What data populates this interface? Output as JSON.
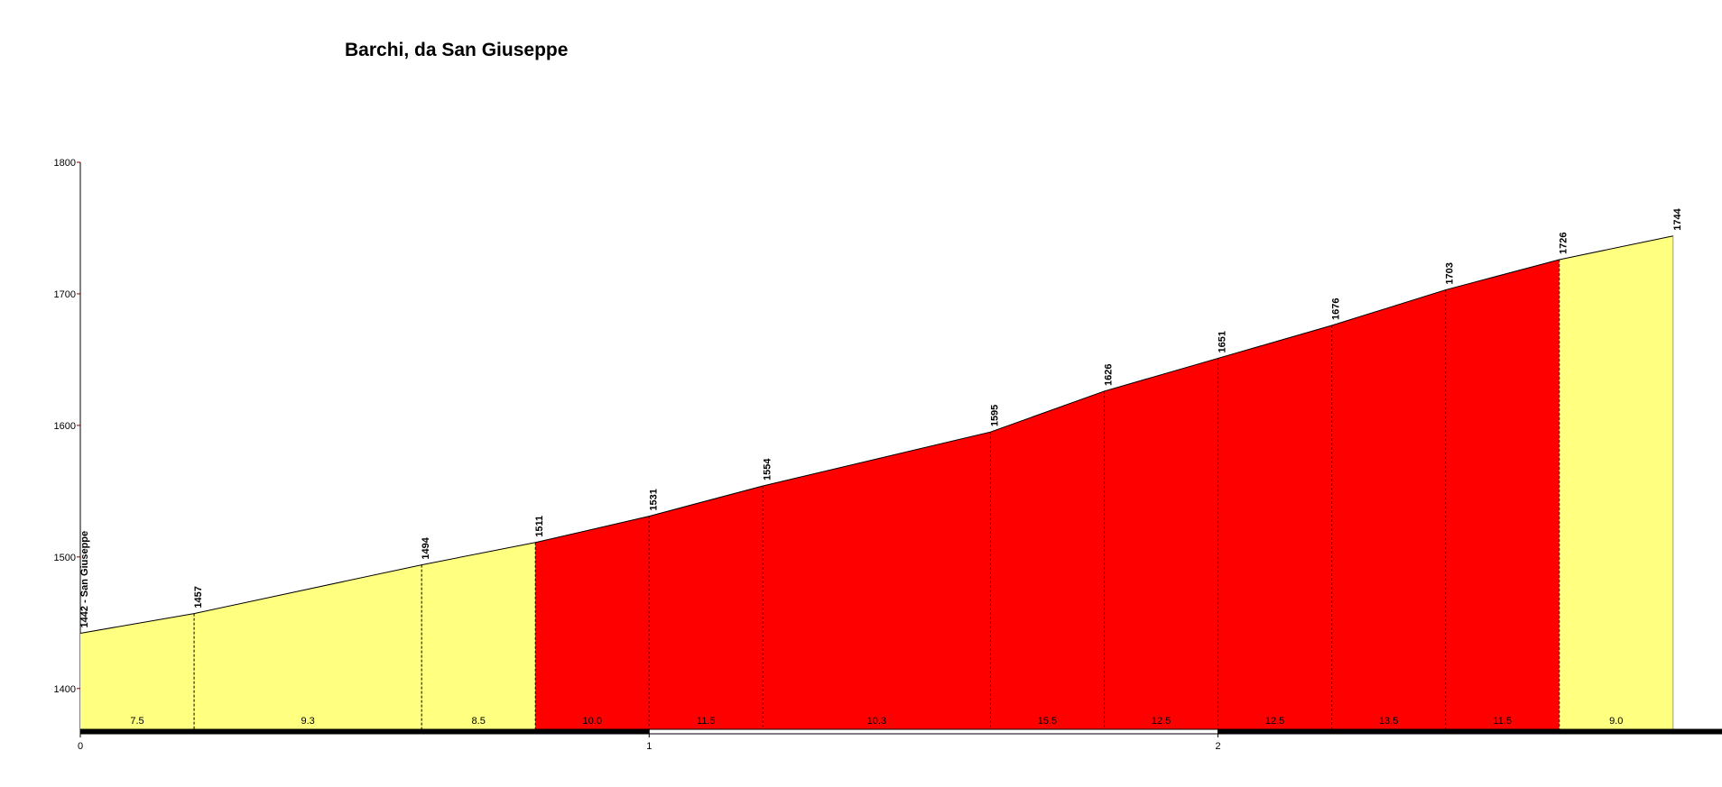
{
  "chart_data": {
    "type": "profile",
    "title": "Barchi, da San Giuseppe",
    "x": [
      0,
      0.2,
      0.6,
      0.8,
      1.0,
      1.2,
      1.6,
      1.8,
      2.0,
      2.2,
      2.4,
      2.6,
      2.8
    ],
    "values": [
      1442,
      1457,
      1494,
      1511,
      1531,
      1554,
      1595,
      1626,
      1651,
      1676,
      1703,
      1726,
      1744
    ],
    "value_labels": [
      "1442 - San Giuseppe",
      "1457",
      "1494",
      "1511",
      "1531",
      "1554",
      "1595",
      "1626",
      "1651",
      "1676",
      "1703",
      "1726",
      "1744"
    ],
    "gradients": [
      7.5,
      9.3,
      8.5,
      10.0,
      11.5,
      10.3,
      15.5,
      12.5,
      12.5,
      13.5,
      11.5,
      9.0
    ],
    "gradient_labels": [
      "7.5",
      "9.3",
      "8.5",
      "10.0",
      "11.5",
      "10.3",
      "15.5",
      "12.5",
      "12.5",
      "13.5",
      "11.5",
      "9.0"
    ],
    "segment_colors": [
      "#ffff80",
      "#ffff80",
      "#ffff80",
      "#ff0000",
      "#ff0000",
      "#ff0000",
      "#ff0000",
      "#ff0000",
      "#ff0000",
      "#ff0000",
      "#ff0000",
      "#ffff80"
    ],
    "xlim": [
      0,
      2.886
    ],
    "xticks": [
      0,
      1,
      2
    ],
    "ylim": [
      1369,
      1800
    ],
    "yticks": [
      1400,
      1500,
      1600,
      1700,
      1800
    ]
  }
}
